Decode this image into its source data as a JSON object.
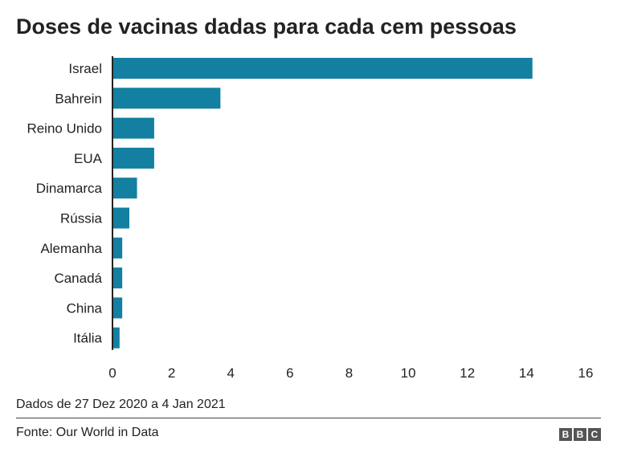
{
  "chart_data": {
    "type": "bar",
    "orientation": "horizontal",
    "title": "Doses de vacinas dadas para cada cem pessoas",
    "categories": [
      "Israel",
      "Bahrein",
      "Reino Unido",
      "EUA",
      "Dinamarca",
      "Rússia",
      "Alemanha",
      "Canadá",
      "China",
      "Itália"
    ],
    "values": [
      14.2,
      3.65,
      1.41,
      1.41,
      0.83,
      0.57,
      0.33,
      0.33,
      0.33,
      0.24
    ],
    "xlim": [
      0,
      16
    ],
    "xticks": [
      "0",
      "2",
      "4",
      "6",
      "8",
      "10",
      "12",
      "14",
      "16"
    ],
    "grid": false,
    "bar_color": "#1380A1"
  },
  "footer": {
    "note": "Dados de 27 Dez 2020 a 4 Jan 2021",
    "source": "Fonte: Our World in Data",
    "logo": [
      "B",
      "B",
      "C"
    ]
  }
}
